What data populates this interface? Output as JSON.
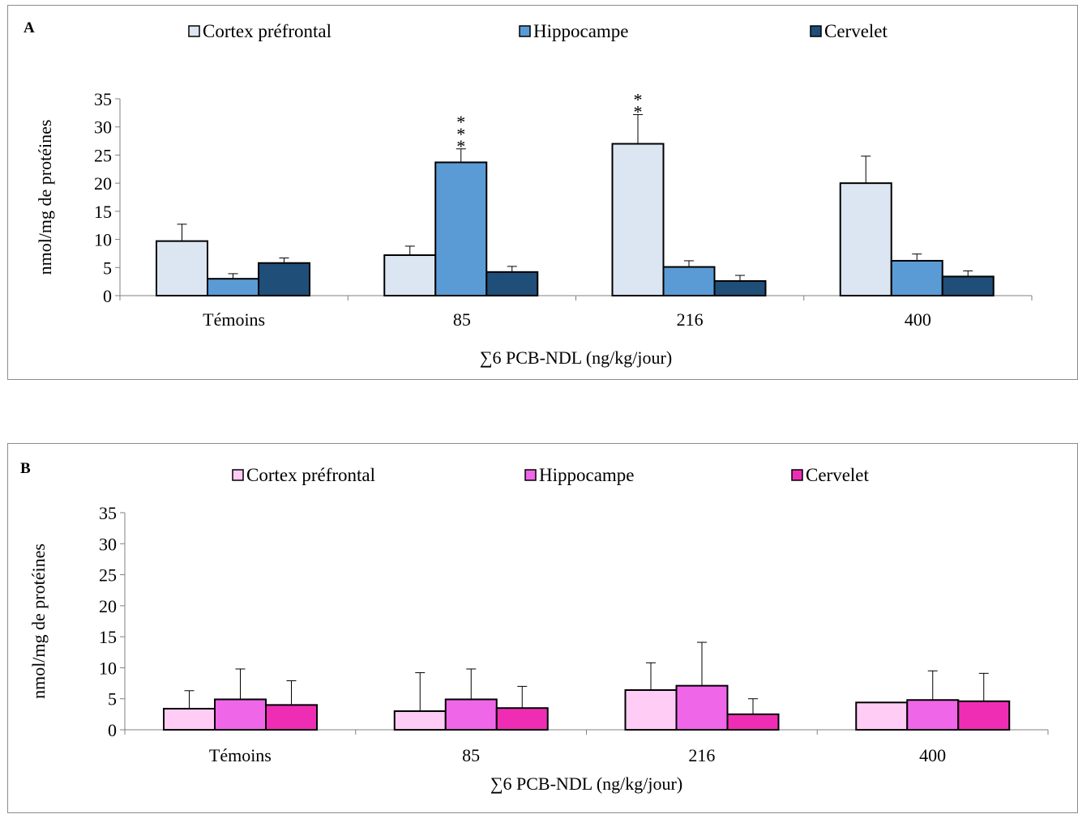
{
  "chart_data": [
    {
      "type": "bar",
      "panel_label": "A",
      "categories": [
        "Témoins",
        "85",
        "216",
        "400"
      ],
      "ylabel": "nmol/mg de protéines",
      "xlabel": "∑6 PCB-NDL (ng/kg/jour)",
      "ylim": [
        0,
        35
      ],
      "yticks": [
        0,
        5,
        10,
        15,
        20,
        25,
        30,
        35
      ],
      "grid": false,
      "legend_position": "top",
      "series": [
        {
          "name": "Cortex préfrontal",
          "color": "#dce6f2",
          "values": [
            9.7,
            7.2,
            27,
            20
          ],
          "errors": [
            3,
            1.6,
            5.2,
            4.8
          ],
          "annotations": [
            "",
            "",
            "**",
            ""
          ]
        },
        {
          "name": "Hippocampe",
          "color": "#5b9bd5",
          "values": [
            3,
            23.7,
            5.1,
            6.2
          ],
          "errors": [
            0.9,
            2.4,
            1.1,
            1.2
          ],
          "annotations": [
            "",
            "***",
            "",
            ""
          ]
        },
        {
          "name": "Cervelet",
          "color": "#1f4e79",
          "values": [
            5.8,
            4.2,
            2.6,
            3.4
          ],
          "errors": [
            0.9,
            1.0,
            1.0,
            1.0
          ],
          "annotations": [
            "",
            "",
            "",
            ""
          ]
        }
      ]
    },
    {
      "type": "bar",
      "panel_label": "B",
      "categories": [
        "Témoins",
        "85",
        "216",
        "400"
      ],
      "ylabel": "nmol/mg de protéines",
      "xlabel": "∑6 PCB-NDL (ng/kg/jour)",
      "ylim": [
        0,
        35
      ],
      "yticks": [
        0,
        5,
        10,
        15,
        20,
        25,
        30,
        35
      ],
      "grid": false,
      "legend_position": "top",
      "series": [
        {
          "name": "Cortex préfrontal",
          "color": "#ffccf5",
          "values": [
            3.4,
            3.0,
            6.4,
            4.4
          ],
          "errors": [
            2.9,
            6.2,
            4.4,
            0
          ],
          "annotations": [
            "",
            "",
            "",
            ""
          ]
        },
        {
          "name": "Hippocampe",
          "color": "#f066e8",
          "values": [
            4.9,
            4.9,
            7.1,
            4.8
          ],
          "errors": [
            4.9,
            4.9,
            7.0,
            4.7
          ],
          "annotations": [
            "",
            "",
            "",
            ""
          ]
        },
        {
          "name": "Cervelet",
          "color": "#ef2db4",
          "values": [
            4.0,
            3.5,
            2.5,
            4.6
          ],
          "errors": [
            3.9,
            3.5,
            2.5,
            4.5
          ],
          "annotations": [
            "",
            "",
            "",
            ""
          ]
        }
      ]
    }
  ]
}
